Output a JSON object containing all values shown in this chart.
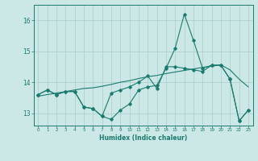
{
  "xlabel": "Humidex (Indice chaleur)",
  "x_values": [
    0,
    1,
    2,
    3,
    4,
    5,
    6,
    7,
    8,
    9,
    10,
    11,
    12,
    13,
    14,
    15,
    16,
    17,
    18,
    19,
    20,
    21,
    22,
    23
  ],
  "line1_y": [
    13.6,
    13.75,
    13.6,
    13.7,
    13.7,
    13.2,
    13.15,
    12.9,
    12.8,
    13.1,
    13.3,
    13.75,
    13.85,
    13.9,
    14.45,
    15.1,
    16.2,
    15.35,
    14.45,
    14.55,
    14.55,
    14.1,
    12.75,
    13.1
  ],
  "line2_y": [
    13.6,
    13.75,
    13.6,
    13.7,
    13.7,
    13.2,
    13.15,
    12.9,
    13.65,
    13.75,
    13.85,
    14.0,
    14.2,
    13.8,
    14.5,
    14.5,
    14.45,
    14.4,
    14.35,
    14.55,
    14.55,
    14.1,
    12.75,
    13.1
  ],
  "trend_y": [
    13.55,
    13.6,
    13.65,
    13.7,
    13.75,
    13.8,
    13.82,
    13.87,
    13.93,
    14.0,
    14.05,
    14.12,
    14.18,
    14.22,
    14.28,
    14.33,
    14.38,
    14.43,
    14.48,
    14.52,
    14.56,
    14.4,
    14.1,
    13.85
  ],
  "line_color": "#1a7a6e",
  "bg_color": "#cce8e6",
  "grid_color": "#a8ceca",
  "ylim": [
    12.6,
    16.5
  ],
  "yticks": [
    13,
    14,
    15,
    16
  ],
  "xticks": [
    0,
    1,
    2,
    3,
    4,
    5,
    6,
    7,
    8,
    9,
    10,
    11,
    12,
    13,
    14,
    15,
    16,
    17,
    18,
    19,
    20,
    21,
    22,
    23
  ]
}
